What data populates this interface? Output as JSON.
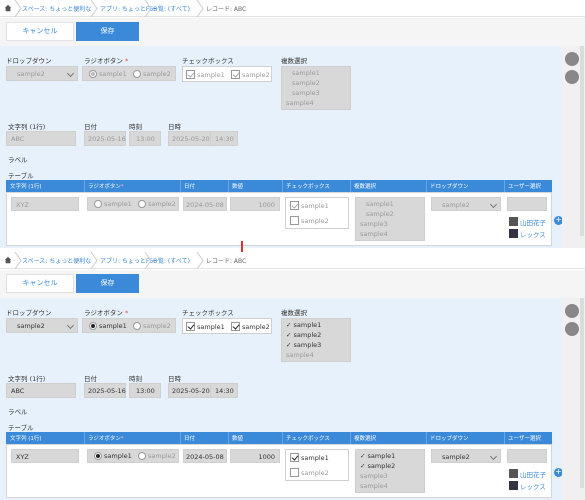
{
  "breadcrumb": {
    "items": [
      "スペース: ちょっと便利な",
      "アプリ: ちょっとFSB",
      "一覧: (すべて)",
      "レコード: ABC"
    ],
    "items_b": [
      "スペース: ちょっと便利な",
      "アプリ: ちょっとFSB",
      "一覧: (すべて)",
      "レコード: ABC"
    ]
  },
  "toolbar": {
    "cancel_label": "キャンセル",
    "save_label": "保存"
  },
  "form": {
    "dropdown": {
      "label": "ドロップダウン",
      "value": "sample2"
    },
    "radio": {
      "label": "ラジオボタン",
      "required": "*",
      "options": [
        "sample1",
        "sample2"
      ],
      "selected": "sample1"
    },
    "checkbox": {
      "label": "チェックボックス",
      "options": [
        "sample1",
        "sample2"
      ]
    },
    "multi": {
      "label": "複数選択",
      "options": [
        "sample1",
        "sample2",
        "sample3",
        "sample4"
      ],
      "options_b": [
        "✓ sample1",
        "✓ sample2",
        "✓ sample3",
        "sample4"
      ]
    },
    "text": {
      "label": "文字列 (1行)",
      "value": "ABC"
    },
    "date": {
      "label": "日付",
      "value": "2025-05-16"
    },
    "time": {
      "label": "時刻",
      "value": "13:00"
    },
    "datetime": {
      "label": "日時",
      "date": "2025-05-20",
      "time": "14:30"
    },
    "label_field": "ラベル",
    "table_label": "テーブル"
  },
  "table": {
    "headers": [
      "文字列 (1行)",
      "ラジオボタン",
      "*",
      "日付",
      "数値",
      "チェックボックス",
      "複数選択",
      "ドロップダウン",
      "ユーザー選択"
    ],
    "row": {
      "text": "XYZ",
      "radio_options": [
        "sample1",
        "sample2"
      ],
      "date": "2024-05-08",
      "number": "1000",
      "checkbox_options": [
        "sample1",
        "sample2"
      ],
      "multi_options": [
        "sample1",
        "sample2",
        "sample3",
        "sample4"
      ],
      "multi_options_b": [
        "✓ sample1",
        "✓ sample2",
        "sample3",
        "sample4"
      ],
      "dropdown": "sample2",
      "users": [
        "山田花子",
        "レックス"
      ]
    }
  },
  "colors": {
    "accent": "#3b8ad9",
    "content_bg": "#e6f1fb",
    "arrow": "#e03030"
  }
}
